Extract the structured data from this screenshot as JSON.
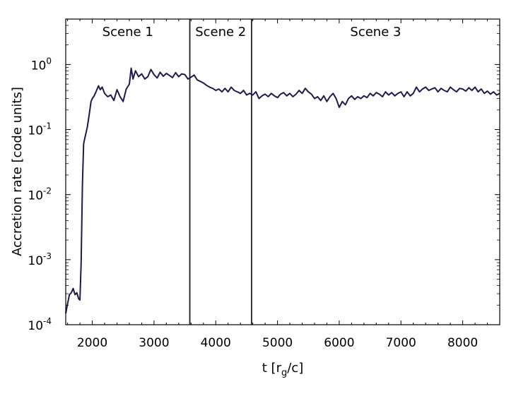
{
  "chart_data": {
    "type": "line",
    "title": "",
    "xlabel": {
      "main": "t [r",
      "sub": "g",
      "tail": "/c]"
    },
    "ylabel": "Accretion rate [code units]",
    "yscale": "log",
    "xlim": [
      1570,
      8600
    ],
    "ylim": [
      0.0001,
      5
    ],
    "x_ticks": [
      {
        "value": 2000,
        "label": "2000"
      },
      {
        "value": 3000,
        "label": "3000"
      },
      {
        "value": 4000,
        "label": "4000"
      },
      {
        "value": 5000,
        "label": "5000"
      },
      {
        "value": 6000,
        "label": "6000"
      },
      {
        "value": 7000,
        "label": "7000"
      },
      {
        "value": 8000,
        "label": "8000"
      }
    ],
    "y_ticks": [
      {
        "value": 0.0001,
        "base": "10",
        "exp": "-4"
      },
      {
        "value": 0.001,
        "base": "10",
        "exp": "-3"
      },
      {
        "value": 0.01,
        "base": "10",
        "exp": "-2"
      },
      {
        "value": 0.1,
        "base": "10",
        "exp": "-1"
      },
      {
        "value": 1,
        "base": "10",
        "exp": "0"
      }
    ],
    "grid": false,
    "line_color": "#1f1a4a",
    "vlines": [
      3580,
      4580
    ],
    "scenes": [
      {
        "label": "Scene 1",
        "x_center": 2575
      },
      {
        "label": "Scene 2",
        "x_center": 4080
      },
      {
        "label": "Scene 3",
        "x_center": 6590
      }
    ],
    "series": [
      {
        "x": [
          1570,
          1600,
          1630,
          1660,
          1690,
          1720,
          1750,
          1780,
          1800,
          1820,
          1840,
          1860,
          1880,
          1900,
          1920,
          1950,
          1980,
          2000,
          2030,
          2060,
          2100,
          2130,
          2160,
          2200,
          2250,
          2300,
          2350,
          2400,
          2450,
          2500,
          2550,
          2600,
          2630,
          2660,
          2700,
          2750,
          2800,
          2850,
          2900,
          2950,
          3000,
          3050,
          3100,
          3150,
          3200,
          3250,
          3300,
          3350,
          3400,
          3450,
          3500,
          3550,
          3600,
          3650,
          3700,
          3750,
          3800,
          3850,
          3900,
          3950,
          4000,
          4050,
          4100,
          4150,
          4200,
          4250,
          4300,
          4350,
          4400,
          4450,
          4500,
          4550,
          4600,
          4650,
          4700,
          4750,
          4800,
          4850,
          4900,
          4950,
          5000,
          5050,
          5100,
          5150,
          5200,
          5250,
          5300,
          5350,
          5400,
          5450,
          5500,
          5550,
          5600,
          5650,
          5700,
          5750,
          5800,
          5850,
          5900,
          5950,
          6000,
          6050,
          6100,
          6150,
          6200,
          6250,
          6300,
          6350,
          6400,
          6450,
          6500,
          6550,
          6600,
          6650,
          6700,
          6750,
          6800,
          6850,
          6900,
          6950,
          7000,
          7050,
          7100,
          7150,
          7200,
          7250,
          7300,
          7350,
          7400,
          7450,
          7500,
          7550,
          7600,
          7650,
          7700,
          7750,
          7800,
          7850,
          7900,
          7950,
          8000,
          8050,
          8100,
          8150,
          8200,
          8250,
          8300,
          8350,
          8400,
          8450,
          8500,
          8550,
          8600
        ],
        "y": [
          0.00015,
          0.00021,
          0.00029,
          0.00031,
          0.00036,
          0.00029,
          0.00031,
          0.00025,
          0.00024,
          0.0009,
          0.014,
          0.06,
          0.075,
          0.09,
          0.11,
          0.17,
          0.27,
          0.3,
          0.33,
          0.38,
          0.47,
          0.41,
          0.45,
          0.36,
          0.32,
          0.34,
          0.28,
          0.41,
          0.32,
          0.27,
          0.42,
          0.5,
          0.88,
          0.6,
          0.8,
          0.65,
          0.72,
          0.6,
          0.65,
          0.84,
          0.7,
          0.62,
          0.76,
          0.66,
          0.73,
          0.68,
          0.63,
          0.75,
          0.65,
          0.72,
          0.7,
          0.6,
          0.64,
          0.69,
          0.58,
          0.55,
          0.52,
          0.48,
          0.45,
          0.43,
          0.4,
          0.42,
          0.38,
          0.43,
          0.38,
          0.45,
          0.4,
          0.38,
          0.36,
          0.4,
          0.34,
          0.36,
          0.34,
          0.38,
          0.3,
          0.33,
          0.35,
          0.32,
          0.36,
          0.33,
          0.31,
          0.35,
          0.37,
          0.33,
          0.36,
          0.32,
          0.35,
          0.4,
          0.36,
          0.43,
          0.38,
          0.35,
          0.3,
          0.32,
          0.28,
          0.33,
          0.27,
          0.32,
          0.36,
          0.3,
          0.22,
          0.27,
          0.24,
          0.3,
          0.33,
          0.29,
          0.32,
          0.3,
          0.33,
          0.31,
          0.36,
          0.33,
          0.37,
          0.35,
          0.32,
          0.38,
          0.34,
          0.37,
          0.33,
          0.36,
          0.38,
          0.32,
          0.38,
          0.33,
          0.36,
          0.45,
          0.38,
          0.42,
          0.45,
          0.4,
          0.42,
          0.44,
          0.38,
          0.43,
          0.4,
          0.38,
          0.45,
          0.41,
          0.38,
          0.43,
          0.42,
          0.39,
          0.44,
          0.4,
          0.45,
          0.38,
          0.42,
          0.36,
          0.39,
          0.35,
          0.38,
          0.34,
          0.36
        ]
      }
    ]
  }
}
